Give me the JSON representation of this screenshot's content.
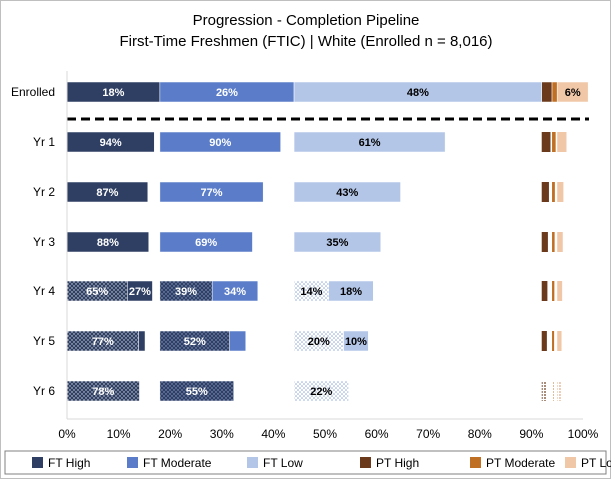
{
  "chart_data": {
    "type": "bar",
    "stacked": true,
    "orientation": "horizontal",
    "title": "Progression - Completion Pipeline",
    "subtitle": "First-Time Freshmen (FTIC)  | White (Enrolled n = 8,016)",
    "xlim": [
      0,
      100
    ],
    "x_ticks": [
      "0%",
      "10%",
      "20%",
      "30%",
      "40%",
      "50%",
      "60%",
      "70%",
      "80%",
      "90%",
      "100%"
    ],
    "grid": false,
    "legend_position": "bottom",
    "categories": [
      "Enrolled",
      "Yr 1",
      "Yr 2",
      "Yr 3",
      "Yr 4",
      "Yr 5",
      "Yr 6"
    ],
    "group_share": {
      "FT High": 18,
      "FT Moderate": 26,
      "FT Low": 48,
      "PT High": 2,
      "PT Moderate": 1,
      "PT Low": 6
    },
    "series": [
      {
        "name": "FT High",
        "color": "#2e3f63"
      },
      {
        "name": "FT Moderate",
        "color": "#5b7dc9"
      },
      {
        "name": "FT Low",
        "color": "#b4c6e7"
      },
      {
        "name": "PT High",
        "color": "#6b3a1c"
      },
      {
        "name": "PT Moderate",
        "color": "#c07025"
      },
      {
        "name": "PT Low",
        "color": "#f0c8a8"
      }
    ],
    "enrolled_labels": {
      "FT High": "18%",
      "FT Moderate": "26%",
      "FT Low": "48%",
      "PT Low": "6%"
    },
    "years": [
      {
        "label": "Yr 1",
        "FT High": {
          "retained": 94,
          "retained_label": "94%"
        },
        "FT Moderate": {
          "retained": 90,
          "retained_label": "90%"
        },
        "FT Low": {
          "retained": 61,
          "retained_label": "61%"
        },
        "PT High": {
          "retained": 85
        },
        "PT Moderate": {
          "retained": 70
        },
        "PT Low": {
          "retained": 30
        }
      },
      {
        "label": "Yr 2",
        "FT High": {
          "retained": 87,
          "retained_label": "87%"
        },
        "FT Moderate": {
          "retained": 77,
          "retained_label": "77%"
        },
        "FT Low": {
          "retained": 43,
          "retained_label": "43%"
        },
        "PT High": {
          "retained": 70
        },
        "PT Moderate": {
          "retained": 55
        },
        "PT Low": {
          "retained": 20
        }
      },
      {
        "label": "Yr 3",
        "FT High": {
          "retained": 88,
          "retained_label": "88%"
        },
        "FT Moderate": {
          "retained": 69,
          "retained_label": "69%"
        },
        "FT Low": {
          "retained": 35,
          "retained_label": "35%"
        },
        "PT High": {
          "retained": 60
        },
        "PT Moderate": {
          "retained": 50
        },
        "PT Low": {
          "retained": 18
        }
      },
      {
        "label": "Yr 4",
        "FT High": {
          "graduated": 65,
          "graduated_label": "65%",
          "retained": 27,
          "retained_label": "27%"
        },
        "FT Moderate": {
          "graduated": 39,
          "graduated_label": "39%",
          "retained": 34,
          "retained_label": "34%"
        },
        "FT Low": {
          "graduated": 14,
          "graduated_label": "14%",
          "retained": 18,
          "retained_label": "18%"
        },
        "PT High": {
          "retained": 55
        },
        "PT Moderate": {
          "retained": 45
        },
        "PT Low": {
          "retained": 16
        }
      },
      {
        "label": "Yr 5",
        "FT High": {
          "graduated": 77,
          "graduated_label": "77%",
          "retained": 7
        },
        "FT Moderate": {
          "graduated": 52,
          "graduated_label": "52%",
          "retained": 12
        },
        "FT Low": {
          "graduated": 20,
          "graduated_label": "20%",
          "retained": 10,
          "retained_label": "10%"
        },
        "PT High": {
          "retained": 50
        },
        "PT Moderate": {
          "retained": 40
        },
        "PT Low": {
          "retained": 14
        }
      },
      {
        "label": "Yr 6",
        "FT High": {
          "graduated": 78,
          "graduated_label": "78%"
        },
        "FT Moderate": {
          "graduated": 55,
          "graduated_label": "55%"
        },
        "FT Low": {
          "graduated": 22,
          "graduated_label": "22%"
        },
        "PT High": {
          "graduated": 45
        },
        "PT Moderate": {
          "graduated": 35
        },
        "PT Low": {
          "graduated": 12
        }
      }
    ]
  }
}
